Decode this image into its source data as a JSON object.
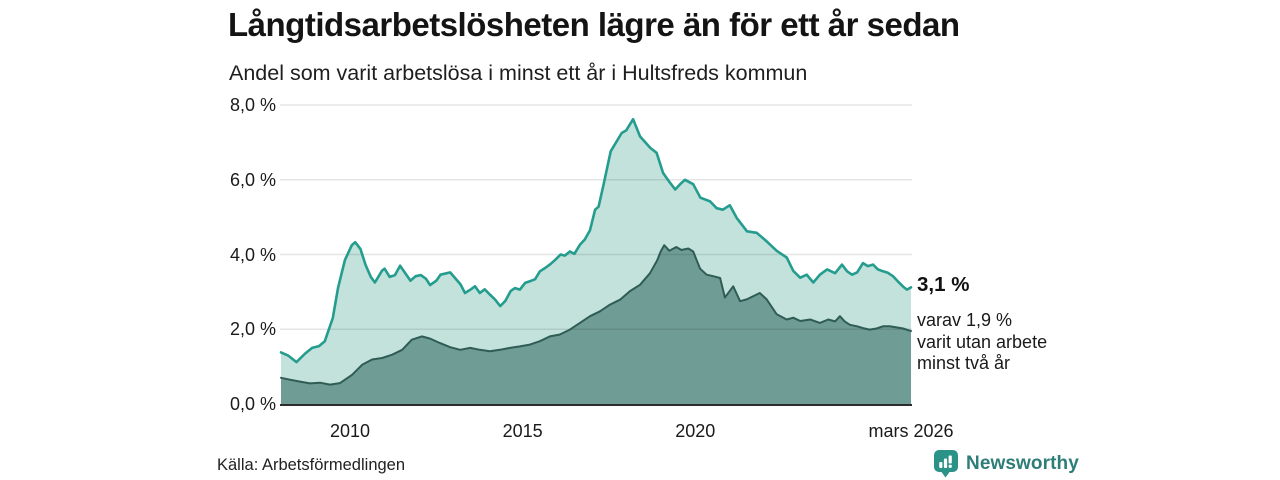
{
  "header": {
    "title": "Långtidsarbetslösheten lägre än för ett år sedan",
    "subtitle": "Andel som varit arbetslösa i minst ett år i Hultsfreds kommun"
  },
  "annotation": {
    "value_label": "3,1 %",
    "lines": [
      "varav 1,9 %",
      "varit utan arbete",
      "minst två år"
    ]
  },
  "footer": {
    "source": "Källa: Arbetsförmedlingen",
    "brand": "Newsworthy",
    "brand_icon": "newsworthy-bars-bubble-icon"
  },
  "colors": {
    "line_total": "#249c8e",
    "fill_total": "#c3e2dc",
    "line_two_years": "#2f5c55",
    "fill_two_years": "#6f9c95",
    "gridline": "rgba(0,0,0,0.10)",
    "axis_line": "#2d2d2d",
    "brand_teal": "#2e7d78",
    "icon_teal": "#2b9287"
  },
  "chart_data": {
    "type": "area",
    "title": "Långtidsarbetslösheten lägre än för ett år sedan",
    "subtitle": "Andel som varit arbetslösa i minst ett år i Hultsfreds kommun",
    "unit": "%",
    "x_axis": {
      "range": [
        2008.0,
        2026.25
      ],
      "ticks": [
        {
          "label": "2010",
          "year": 2010
        },
        {
          "label": "2015",
          "year": 2015
        },
        {
          "label": "2020",
          "year": 2020
        },
        {
          "label": "mars 2026",
          "year": 2026.25
        }
      ]
    },
    "y_axis": {
      "range": [
        0,
        8
      ],
      "gridlines": [
        2,
        4,
        6,
        8
      ],
      "ticks": [
        {
          "label": "8,0 %",
          "value": 8
        },
        {
          "label": "6,0 %",
          "value": 6
        },
        {
          "label": "4,0 %",
          "value": 4
        },
        {
          "label": "2,0 %",
          "value": 2
        },
        {
          "label": "0,0 %",
          "value": 0
        }
      ]
    },
    "legend_position": "none",
    "grid": true,
    "series": [
      {
        "name": "Arbetslösa minst ett år",
        "end_value": 3.1,
        "end_label": "3,1 %",
        "points": [
          [
            2008.0,
            1.38
          ],
          [
            2008.2,
            1.3
          ],
          [
            2008.45,
            1.12
          ],
          [
            2008.7,
            1.35
          ],
          [
            2008.9,
            1.5
          ],
          [
            2009.1,
            1.55
          ],
          [
            2009.27,
            1.68
          ],
          [
            2009.5,
            2.3
          ],
          [
            2009.65,
            3.1
          ],
          [
            2009.85,
            3.85
          ],
          [
            2010.05,
            4.25
          ],
          [
            2010.15,
            4.33
          ],
          [
            2010.3,
            4.15
          ],
          [
            2010.45,
            3.72
          ],
          [
            2010.6,
            3.4
          ],
          [
            2010.72,
            3.25
          ],
          [
            2010.93,
            3.57
          ],
          [
            2011.0,
            3.62
          ],
          [
            2011.15,
            3.4
          ],
          [
            2011.3,
            3.45
          ],
          [
            2011.45,
            3.7
          ],
          [
            2011.6,
            3.5
          ],
          [
            2011.75,
            3.3
          ],
          [
            2011.9,
            3.42
          ],
          [
            2012.05,
            3.45
          ],
          [
            2012.2,
            3.35
          ],
          [
            2012.32,
            3.18
          ],
          [
            2012.5,
            3.3
          ],
          [
            2012.62,
            3.46
          ],
          [
            2012.9,
            3.52
          ],
          [
            2013.2,
            3.2
          ],
          [
            2013.33,
            2.97
          ],
          [
            2013.5,
            3.07
          ],
          [
            2013.62,
            3.15
          ],
          [
            2013.76,
            2.97
          ],
          [
            2013.9,
            3.07
          ],
          [
            2014.05,
            2.93
          ],
          [
            2014.2,
            2.8
          ],
          [
            2014.35,
            2.62
          ],
          [
            2014.5,
            2.76
          ],
          [
            2014.65,
            3.02
          ],
          [
            2014.78,
            3.1
          ],
          [
            2014.92,
            3.06
          ],
          [
            2015.07,
            3.24
          ],
          [
            2015.2,
            3.28
          ],
          [
            2015.36,
            3.34
          ],
          [
            2015.5,
            3.55
          ],
          [
            2015.65,
            3.64
          ],
          [
            2015.8,
            3.74
          ],
          [
            2015.95,
            3.86
          ],
          [
            2016.1,
            4.0
          ],
          [
            2016.22,
            3.97
          ],
          [
            2016.37,
            4.08
          ],
          [
            2016.5,
            4.02
          ],
          [
            2016.66,
            4.26
          ],
          [
            2016.8,
            4.4
          ],
          [
            2016.95,
            4.65
          ],
          [
            2017.1,
            5.2
          ],
          [
            2017.2,
            5.28
          ],
          [
            2017.35,
            5.9
          ],
          [
            2017.55,
            6.76
          ],
          [
            2017.87,
            7.25
          ],
          [
            2018.0,
            7.32
          ],
          [
            2018.2,
            7.62
          ],
          [
            2018.4,
            7.16
          ],
          [
            2018.7,
            6.85
          ],
          [
            2018.88,
            6.72
          ],
          [
            2019.07,
            6.18
          ],
          [
            2019.27,
            5.92
          ],
          [
            2019.42,
            5.74
          ],
          [
            2019.56,
            5.88
          ],
          [
            2019.7,
            6.0
          ],
          [
            2019.94,
            5.88
          ],
          [
            2020.15,
            5.52
          ],
          [
            2020.43,
            5.42
          ],
          [
            2020.62,
            5.24
          ],
          [
            2020.8,
            5.2
          ],
          [
            2021.0,
            5.32
          ],
          [
            2021.2,
            4.98
          ],
          [
            2021.5,
            4.62
          ],
          [
            2021.78,
            4.58
          ],
          [
            2022.07,
            4.35
          ],
          [
            2022.36,
            4.1
          ],
          [
            2022.65,
            3.92
          ],
          [
            2022.84,
            3.56
          ],
          [
            2023.04,
            3.38
          ],
          [
            2023.23,
            3.46
          ],
          [
            2023.42,
            3.25
          ],
          [
            2023.61,
            3.46
          ],
          [
            2023.82,
            3.6
          ],
          [
            2024.05,
            3.5
          ],
          [
            2024.25,
            3.73
          ],
          [
            2024.4,
            3.55
          ],
          [
            2024.54,
            3.46
          ],
          [
            2024.69,
            3.52
          ],
          [
            2024.86,
            3.77
          ],
          [
            2025.0,
            3.69
          ],
          [
            2025.15,
            3.73
          ],
          [
            2025.29,
            3.6
          ],
          [
            2025.44,
            3.55
          ],
          [
            2025.58,
            3.51
          ],
          [
            2025.73,
            3.42
          ],
          [
            2025.87,
            3.28
          ],
          [
            2026.02,
            3.14
          ],
          [
            2026.13,
            3.06
          ],
          [
            2026.25,
            3.12
          ]
        ]
      },
      {
        "name": "varav utan arbete minst två år",
        "end_value": 1.9,
        "end_label": "1,9 %",
        "points": [
          [
            2008.0,
            0.7
          ],
          [
            2008.26,
            0.65
          ],
          [
            2008.55,
            0.6
          ],
          [
            2008.84,
            0.55
          ],
          [
            2009.13,
            0.57
          ],
          [
            2009.42,
            0.52
          ],
          [
            2009.71,
            0.56
          ],
          [
            2010.06,
            0.78
          ],
          [
            2010.35,
            1.05
          ],
          [
            2010.64,
            1.19
          ],
          [
            2010.93,
            1.23
          ],
          [
            2011.22,
            1.32
          ],
          [
            2011.51,
            1.45
          ],
          [
            2011.79,
            1.72
          ],
          [
            2012.08,
            1.81
          ],
          [
            2012.32,
            1.75
          ],
          [
            2012.61,
            1.63
          ],
          [
            2012.9,
            1.52
          ],
          [
            2013.19,
            1.45
          ],
          [
            2013.48,
            1.5
          ],
          [
            2013.76,
            1.45
          ],
          [
            2014.05,
            1.41
          ],
          [
            2014.34,
            1.45
          ],
          [
            2014.63,
            1.5
          ],
          [
            2014.92,
            1.54
          ],
          [
            2015.21,
            1.59
          ],
          [
            2015.5,
            1.68
          ],
          [
            2015.79,
            1.81
          ],
          [
            2016.08,
            1.86
          ],
          [
            2016.37,
            1.99
          ],
          [
            2016.66,
            2.17
          ],
          [
            2016.95,
            2.35
          ],
          [
            2017.24,
            2.48
          ],
          [
            2017.53,
            2.66
          ],
          [
            2017.82,
            2.79
          ],
          [
            2018.11,
            3.02
          ],
          [
            2018.4,
            3.19
          ],
          [
            2018.69,
            3.5
          ],
          [
            2018.9,
            3.85
          ],
          [
            2019.0,
            4.08
          ],
          [
            2019.1,
            4.25
          ],
          [
            2019.25,
            4.1
          ],
          [
            2019.45,
            4.2
          ],
          [
            2019.6,
            4.12
          ],
          [
            2019.8,
            4.16
          ],
          [
            2019.94,
            4.08
          ],
          [
            2020.14,
            3.62
          ],
          [
            2020.33,
            3.46
          ],
          [
            2020.52,
            3.42
          ],
          [
            2020.72,
            3.37
          ],
          [
            2020.86,
            2.85
          ],
          [
            2021.1,
            3.15
          ],
          [
            2021.3,
            2.75
          ],
          [
            2021.49,
            2.8
          ],
          [
            2021.87,
            2.97
          ],
          [
            2022.07,
            2.8
          ],
          [
            2022.36,
            2.4
          ],
          [
            2022.65,
            2.26
          ],
          [
            2022.84,
            2.31
          ],
          [
            2023.04,
            2.22
          ],
          [
            2023.33,
            2.26
          ],
          [
            2023.61,
            2.17
          ],
          [
            2023.85,
            2.26
          ],
          [
            2024.05,
            2.21
          ],
          [
            2024.19,
            2.35
          ],
          [
            2024.33,
            2.21
          ],
          [
            2024.48,
            2.12
          ],
          [
            2024.69,
            2.08
          ],
          [
            2024.86,
            2.03
          ],
          [
            2025.05,
            1.99
          ],
          [
            2025.25,
            2.02
          ],
          [
            2025.44,
            2.08
          ],
          [
            2025.63,
            2.08
          ],
          [
            2025.83,
            2.05
          ],
          [
            2026.02,
            2.02
          ],
          [
            2026.25,
            1.95
          ]
        ]
      }
    ]
  }
}
